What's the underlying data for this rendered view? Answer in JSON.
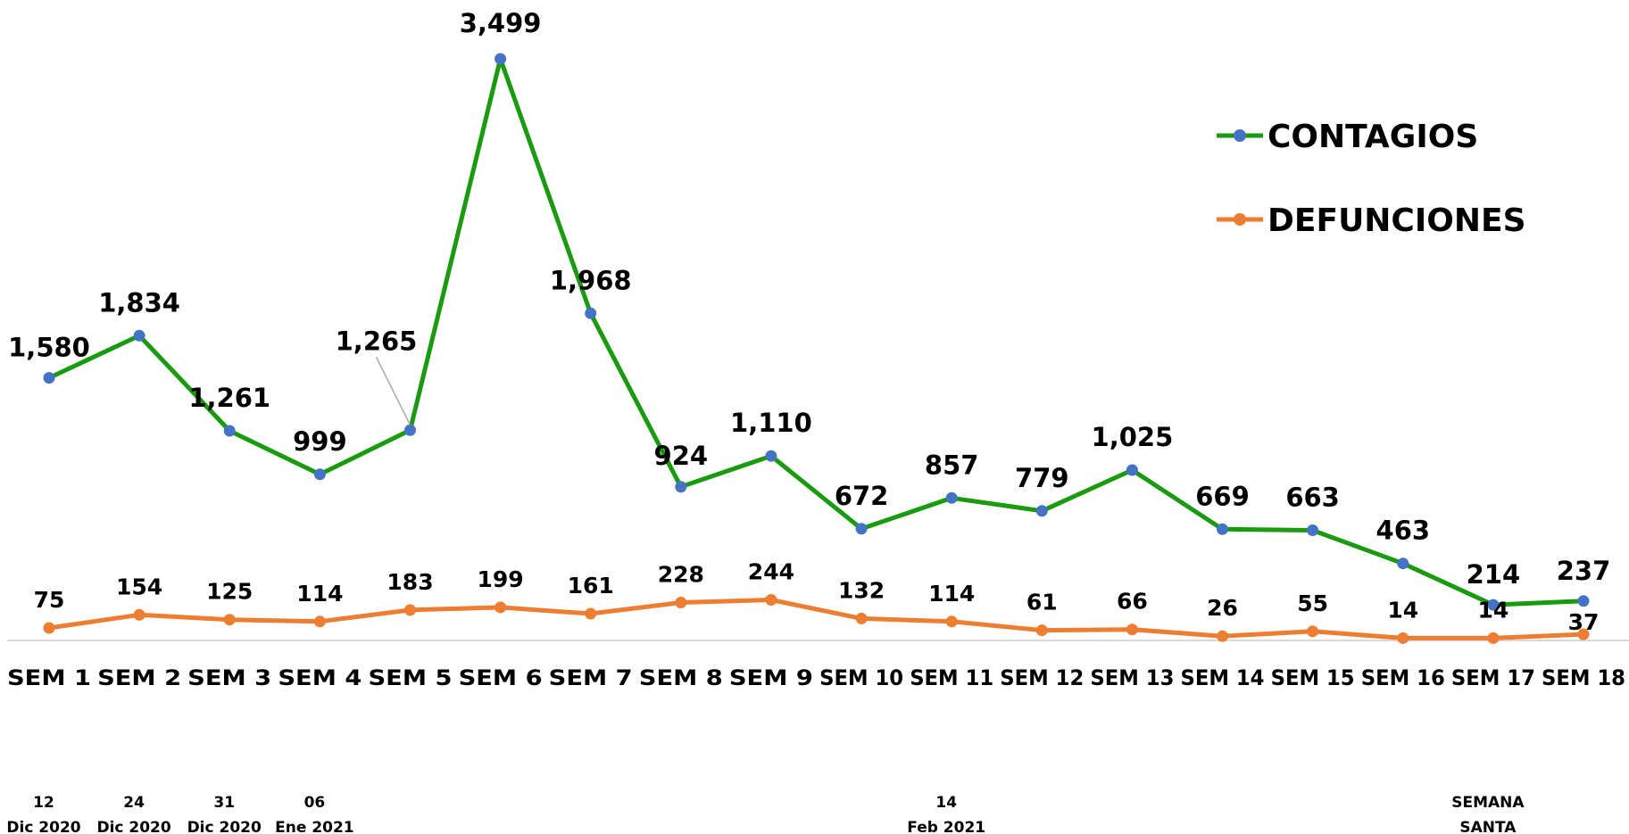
{
  "chart_data": {
    "type": "line",
    "categories": [
      "SEM 1",
      "SEM 2",
      "SEM 3",
      "SEM 4",
      "SEM 5",
      "SEM 6",
      "SEM 7",
      "SEM 8",
      "SEM 9",
      "SEM 10",
      "SEM 11",
      "SEM 12",
      "SEM 13",
      "SEM 14",
      "SEM 15",
      "SEM 16",
      "SEM 17",
      "SEM 18"
    ],
    "series": [
      {
        "name": "CONTAGIOS",
        "line_color": "#1a9a0e",
        "marker_color": "#4472c4",
        "values": [
          1580,
          1834,
          1261,
          999,
          1265,
          3499,
          1968,
          924,
          1110,
          672,
          857,
          779,
          1025,
          669,
          663,
          463,
          214,
          237
        ],
        "labels": [
          "1,580",
          "1,834",
          "1,261",
          "999",
          "1,265",
          "3,499",
          "1,968",
          "924",
          "1,110",
          "672",
          "857",
          "779",
          "1,025",
          "669",
          "663",
          "463",
          "214",
          "237"
        ]
      },
      {
        "name": "DEFUNCIONES",
        "line_color": "#ed7d31",
        "marker_color": "#ed7d31",
        "values": [
          75,
          154,
          125,
          114,
          183,
          199,
          161,
          228,
          244,
          132,
          114,
          61,
          66,
          26,
          55,
          14,
          14,
          37
        ],
        "labels": [
          "75",
          "154",
          "125",
          "114",
          "183",
          "199",
          "161",
          "228",
          "244",
          "132",
          "114",
          "61",
          "66",
          "26",
          "55",
          "14",
          "14",
          "37"
        ]
      }
    ],
    "annotations": [
      {
        "index": 0,
        "lines": [
          "12",
          "Dic 2020"
        ]
      },
      {
        "index": 1,
        "lines": [
          "24",
          "Dic 2020"
        ]
      },
      {
        "index": 2,
        "lines": [
          "31",
          "Dic 2020"
        ]
      },
      {
        "index": 3,
        "lines": [
          "06",
          "Ene 2021"
        ]
      },
      {
        "index": 10,
        "lines": [
          "14",
          "Feb 2021"
        ]
      },
      {
        "index": 16,
        "lines": [
          "SEMANA",
          "SANTA"
        ]
      }
    ],
    "ylim": [
      0,
      3600
    ],
    "grid": false,
    "legend_position": "top-right",
    "title": "",
    "xlabel": "",
    "ylabel": ""
  }
}
